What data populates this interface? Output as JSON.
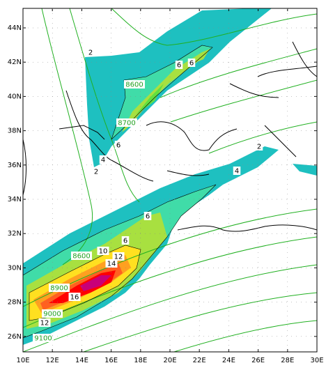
{
  "map": {
    "latitude_labels": [
      "44N",
      "42N",
      "40N",
      "38N",
      "36N",
      "34N",
      "32N",
      "30N",
      "28N",
      "26N"
    ],
    "longitude_labels": [
      "10E",
      "12E",
      "14E",
      "16E",
      "18E",
      "20E",
      "22E",
      "24E",
      "26E",
      "28E",
      "30E"
    ],
    "contour_labels": [
      "2",
      "2",
      "2",
      "4",
      "4",
      "6",
      "6",
      "6",
      "6",
      "6",
      "8600",
      "8600",
      "8700",
      "8900",
      "9000",
      "9100",
      "10",
      "12",
      "12",
      "14",
      "16"
    ]
  }
}
